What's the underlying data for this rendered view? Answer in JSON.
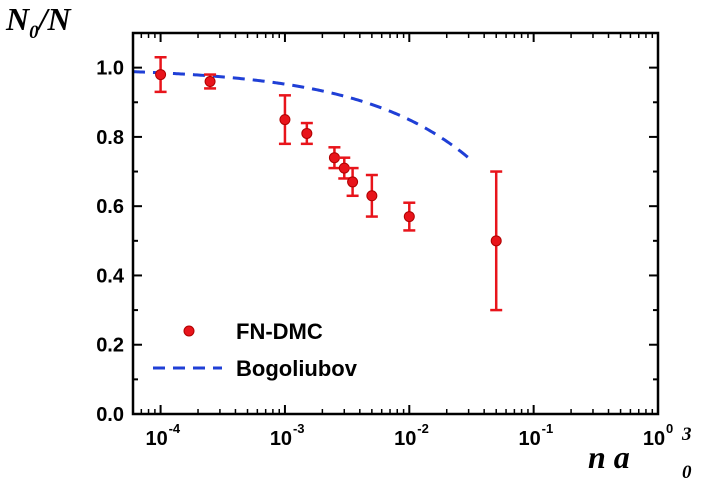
{
  "chart_data": {
    "type": "scatter",
    "xscale": "log",
    "xlim": [
      6e-05,
      1
    ],
    "ylim": [
      0,
      1.1
    ],
    "xlabel": {
      "main": "n a",
      "sub": "0",
      "sup": "3"
    },
    "ylabel": {
      "main": "N",
      "sub": "0",
      "rest": "/N"
    },
    "yticks": [
      "0.0",
      "0.2",
      "0.4",
      "0.6",
      "0.8",
      "1.0"
    ],
    "xticks": [
      {
        "value": 0.0001,
        "base": "10",
        "exp": "-4"
      },
      {
        "value": 0.001,
        "base": "10",
        "exp": "-3"
      },
      {
        "value": 0.01,
        "base": "10",
        "exp": "-2"
      },
      {
        "value": 0.1,
        "base": "10",
        "exp": "-1"
      },
      {
        "value": 1,
        "base": "10",
        "exp": "0"
      }
    ],
    "grid": false,
    "legend_position": "bottom-left",
    "series": [
      {
        "name": "FN-DMC",
        "kind": "points-with-error-bars",
        "color": "#e8141b",
        "points": [
          {
            "x": 0.0001,
            "y": 0.98,
            "err": 0.05
          },
          {
            "x": 0.00025,
            "y": 0.96,
            "err": 0.02
          },
          {
            "x": 0.001,
            "y": 0.85,
            "err": 0.07
          },
          {
            "x": 0.0015,
            "y": 0.81,
            "err": 0.03
          },
          {
            "x": 0.0025,
            "y": 0.74,
            "err": 0.03
          },
          {
            "x": 0.003,
            "y": 0.71,
            "err": 0.03
          },
          {
            "x": 0.0035,
            "y": 0.67,
            "err": 0.04
          },
          {
            "x": 0.005,
            "y": 0.63,
            "err": 0.06
          },
          {
            "x": 0.01,
            "y": 0.57,
            "err": 0.04
          },
          {
            "x": 0.05,
            "y": 0.5,
            "err": 0.2
          }
        ]
      },
      {
        "name": "Bogoliubov",
        "kind": "dashed-line",
        "color": "#1f3fd6",
        "formula": "1 - (8/3)*sqrt(n a^3 / pi)"
      }
    ]
  }
}
